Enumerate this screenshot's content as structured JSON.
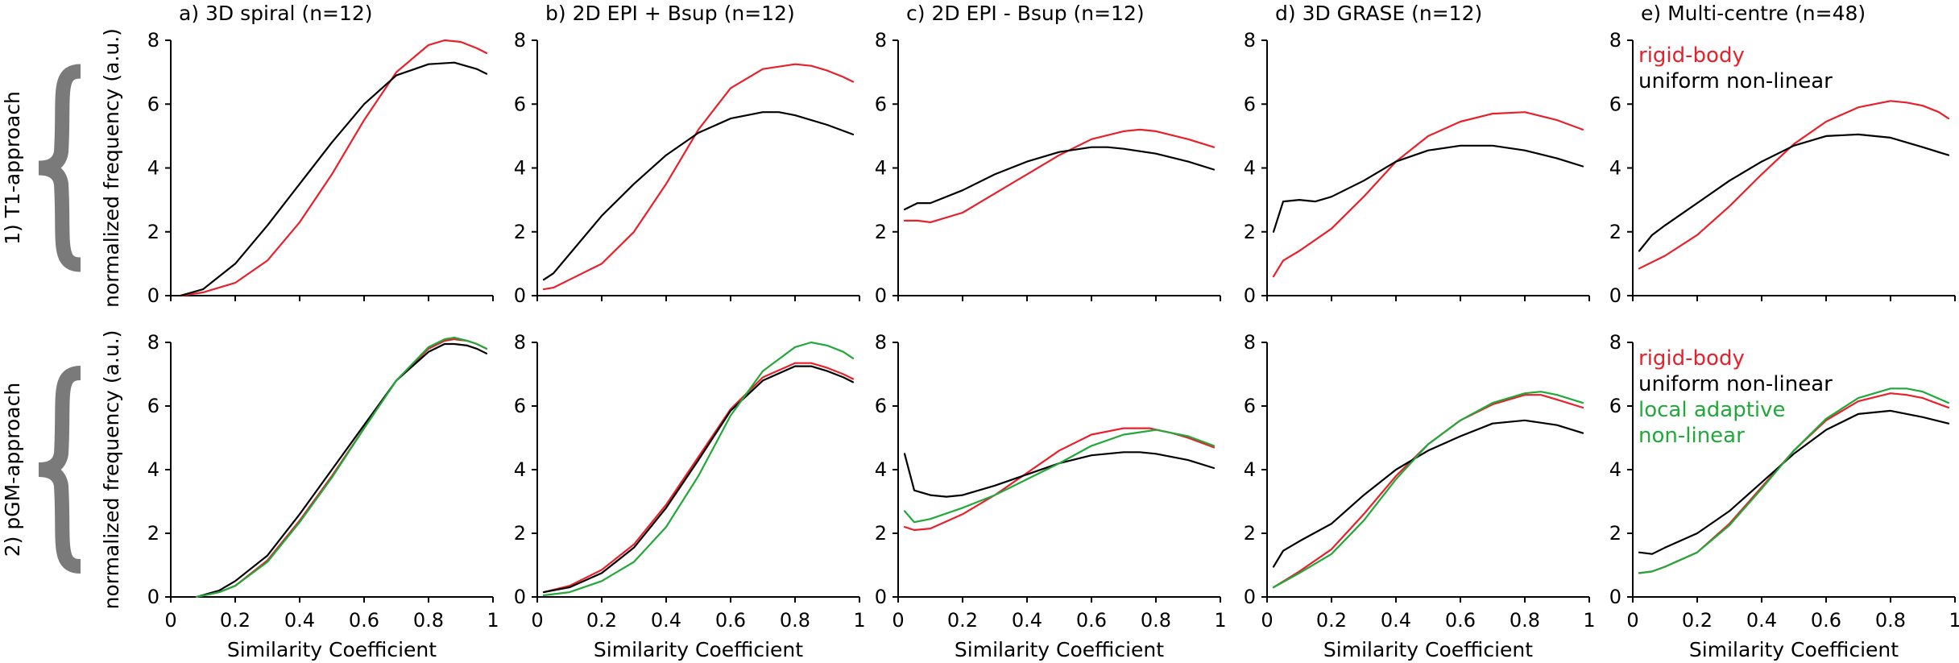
{
  "colors": {
    "rigid": "#e8202a",
    "uniform": "#000000",
    "local": "#22a83a",
    "brace": "#7a7a7a"
  },
  "row_labels": [
    "1) T1-approach",
    "2) pGM-approach"
  ],
  "legend_top": [
    "rigid-body",
    "uniform non-linear"
  ],
  "legend_bottom": [
    "rigid-body",
    "uniform non-linear",
    "local adaptive",
    "non-linear"
  ],
  "chart_data": [
    {
      "type": "line",
      "title": "a) 3D spiral (n=12)",
      "xlabel": "",
      "ylabel": "normalized frequency (a.u.)",
      "xlim": [
        0,
        1
      ],
      "ylim": [
        0,
        8
      ],
      "x_ticks": [
        "0",
        "0.2",
        "0.4",
        "0.6",
        "0.8",
        "1"
      ],
      "y_ticks": [
        "0",
        "2",
        "4",
        "6",
        "8"
      ],
      "series": [
        {
          "name": "rigid-body",
          "color": "rigid",
          "x": [
            0.03,
            0.1,
            0.2,
            0.3,
            0.4,
            0.5,
            0.6,
            0.7,
            0.8,
            0.85,
            0.9,
            0.95,
            0.98
          ],
          "y": [
            0,
            0.1,
            0.4,
            1.1,
            2.3,
            3.8,
            5.5,
            7.0,
            7.85,
            8.0,
            7.95,
            7.75,
            7.6
          ]
        },
        {
          "name": "uniform non-linear",
          "color": "uniform",
          "x": [
            0.03,
            0.1,
            0.2,
            0.3,
            0.4,
            0.5,
            0.6,
            0.7,
            0.8,
            0.88,
            0.95,
            0.98
          ],
          "y": [
            0,
            0.2,
            1.0,
            2.2,
            3.5,
            4.8,
            6.0,
            6.9,
            7.25,
            7.3,
            7.1,
            6.95
          ]
        }
      ]
    },
    {
      "type": "line",
      "title": "b) 2D EPI + Bsup (n=12)",
      "xlabel": "",
      "ylabel": "",
      "xlim": [
        0,
        1
      ],
      "ylim": [
        0,
        8
      ],
      "x_ticks": [
        "0",
        "0.2",
        "0.4",
        "0.6",
        "0.8",
        "1"
      ],
      "y_ticks": [
        "0",
        "2",
        "4",
        "6",
        "8"
      ],
      "series": [
        {
          "name": "rigid-body",
          "color": "rigid",
          "x": [
            0.02,
            0.05,
            0.1,
            0.2,
            0.3,
            0.4,
            0.5,
            0.6,
            0.7,
            0.8,
            0.85,
            0.9,
            0.95,
            0.98
          ],
          "y": [
            0.2,
            0.25,
            0.5,
            1.0,
            2.0,
            3.5,
            5.2,
            6.5,
            7.1,
            7.25,
            7.2,
            7.05,
            6.85,
            6.7
          ]
        },
        {
          "name": "uniform non-linear",
          "color": "uniform",
          "x": [
            0.02,
            0.05,
            0.1,
            0.2,
            0.3,
            0.4,
            0.5,
            0.6,
            0.7,
            0.75,
            0.8,
            0.9,
            0.98
          ],
          "y": [
            0.5,
            0.7,
            1.3,
            2.5,
            3.5,
            4.4,
            5.1,
            5.55,
            5.75,
            5.75,
            5.65,
            5.35,
            5.05
          ]
        }
      ]
    },
    {
      "type": "line",
      "title": "c) 2D EPI - Bsup (n=12)",
      "xlabel": "",
      "ylabel": "",
      "xlim": [
        0,
        1
      ],
      "ylim": [
        0,
        8
      ],
      "x_ticks": [
        "0",
        "0.2",
        "0.4",
        "0.6",
        "0.8",
        "1"
      ],
      "y_ticks": [
        "0",
        "2",
        "4",
        "6",
        "8"
      ],
      "series": [
        {
          "name": "rigid-body",
          "color": "rigid",
          "x": [
            0.02,
            0.06,
            0.1,
            0.2,
            0.3,
            0.4,
            0.5,
            0.6,
            0.7,
            0.75,
            0.8,
            0.9,
            0.98
          ],
          "y": [
            2.35,
            2.35,
            2.3,
            2.6,
            3.2,
            3.8,
            4.4,
            4.9,
            5.15,
            5.2,
            5.15,
            4.9,
            4.65
          ]
        },
        {
          "name": "uniform non-linear",
          "color": "uniform",
          "x": [
            0.02,
            0.06,
            0.1,
            0.2,
            0.3,
            0.4,
            0.5,
            0.6,
            0.65,
            0.7,
            0.8,
            0.9,
            0.98
          ],
          "y": [
            2.7,
            2.9,
            2.9,
            3.3,
            3.8,
            4.2,
            4.5,
            4.65,
            4.65,
            4.6,
            4.45,
            4.2,
            3.95
          ]
        }
      ]
    },
    {
      "type": "line",
      "title": "d) 3D GRASE (n=12)",
      "xlabel": "",
      "ylabel": "",
      "xlim": [
        0,
        1
      ],
      "ylim": [
        0,
        8
      ],
      "x_ticks": [
        "0",
        "0.2",
        "0.4",
        "0.6",
        "0.8",
        "1"
      ],
      "y_ticks": [
        "0",
        "2",
        "4",
        "6",
        "8"
      ],
      "series": [
        {
          "name": "rigid-body",
          "color": "rigid",
          "x": [
            0.02,
            0.05,
            0.1,
            0.2,
            0.3,
            0.4,
            0.5,
            0.6,
            0.7,
            0.8,
            0.9,
            0.98
          ],
          "y": [
            0.6,
            1.1,
            1.4,
            2.1,
            3.1,
            4.2,
            5.0,
            5.45,
            5.7,
            5.75,
            5.5,
            5.2
          ]
        },
        {
          "name": "uniform non-linear",
          "color": "uniform",
          "x": [
            0.02,
            0.05,
            0.1,
            0.15,
            0.2,
            0.3,
            0.4,
            0.5,
            0.6,
            0.65,
            0.7,
            0.8,
            0.9,
            0.98
          ],
          "y": [
            2.0,
            2.95,
            3.0,
            2.95,
            3.1,
            3.6,
            4.2,
            4.55,
            4.7,
            4.7,
            4.7,
            4.55,
            4.3,
            4.05
          ]
        }
      ]
    },
    {
      "type": "line",
      "title": "e) Multi-centre (n=48)",
      "xlabel": "",
      "ylabel": "",
      "xlim": [
        0,
        1
      ],
      "ylim": [
        0,
        8
      ],
      "x_ticks": [
        "0",
        "0.2",
        "0.4",
        "0.6",
        "0.8",
        "1"
      ],
      "y_ticks": [
        "0",
        "2",
        "4",
        "6",
        "8"
      ],
      "series": [
        {
          "name": "rigid-body",
          "color": "rigid",
          "x": [
            0.02,
            0.06,
            0.1,
            0.2,
            0.3,
            0.4,
            0.5,
            0.6,
            0.7,
            0.8,
            0.85,
            0.9,
            0.95,
            0.98
          ],
          "y": [
            0.85,
            1.05,
            1.25,
            1.9,
            2.8,
            3.8,
            4.75,
            5.45,
            5.9,
            6.1,
            6.05,
            5.95,
            5.75,
            5.55
          ]
        },
        {
          "name": "uniform non-linear",
          "color": "uniform",
          "x": [
            0.02,
            0.06,
            0.1,
            0.2,
            0.3,
            0.4,
            0.5,
            0.6,
            0.7,
            0.8,
            0.9,
            0.98
          ],
          "y": [
            1.4,
            1.9,
            2.2,
            2.9,
            3.6,
            4.2,
            4.7,
            5.0,
            5.05,
            4.95,
            4.65,
            4.4
          ]
        }
      ]
    },
    {
      "type": "line",
      "title": "",
      "xlabel": "Similarity Coefficient",
      "ylabel": "normalized frequency (a.u.)",
      "xlim": [
        0,
        1
      ],
      "ylim": [
        0,
        8
      ],
      "x_ticks": [
        "0",
        "0.2",
        "0.4",
        "0.6",
        "0.8",
        "1"
      ],
      "y_ticks": [
        "0",
        "2",
        "4",
        "6",
        "8"
      ],
      "series": [
        {
          "name": "rigid-body",
          "color": "rigid",
          "x": [
            0.08,
            0.15,
            0.2,
            0.3,
            0.4,
            0.5,
            0.6,
            0.7,
            0.8,
            0.85,
            0.88,
            0.92,
            0.95,
            0.98
          ],
          "y": [
            0,
            0.15,
            0.35,
            1.15,
            2.4,
            3.8,
            5.3,
            6.8,
            7.8,
            8.05,
            8.1,
            8.05,
            7.95,
            7.8
          ]
        },
        {
          "name": "uniform non-linear",
          "color": "uniform",
          "x": [
            0.08,
            0.15,
            0.2,
            0.3,
            0.4,
            0.5,
            0.6,
            0.7,
            0.8,
            0.85,
            0.88,
            0.92,
            0.95,
            0.98
          ],
          "y": [
            0,
            0.2,
            0.5,
            1.3,
            2.6,
            4.0,
            5.4,
            6.8,
            7.7,
            7.95,
            7.95,
            7.9,
            7.8,
            7.65
          ]
        },
        {
          "name": "local adaptive non-linear",
          "color": "local",
          "x": [
            0.08,
            0.15,
            0.2,
            0.3,
            0.4,
            0.5,
            0.6,
            0.7,
            0.8,
            0.85,
            0.88,
            0.92,
            0.95,
            0.98
          ],
          "y": [
            0,
            0.15,
            0.35,
            1.1,
            2.35,
            3.75,
            5.3,
            6.8,
            7.85,
            8.1,
            8.15,
            8.05,
            7.95,
            7.8
          ]
        }
      ]
    },
    {
      "type": "line",
      "title": "",
      "xlabel": "Similarity Coefficient",
      "ylabel": "",
      "xlim": [
        0,
        1
      ],
      "ylim": [
        0,
        8
      ],
      "x_ticks": [
        "0",
        "0.2",
        "0.4",
        "0.6",
        "0.8",
        "1"
      ],
      "y_ticks": [
        "0",
        "2",
        "4",
        "6",
        "8"
      ],
      "series": [
        {
          "name": "rigid-body",
          "color": "rigid",
          "x": [
            0.02,
            0.1,
            0.2,
            0.3,
            0.4,
            0.5,
            0.6,
            0.7,
            0.8,
            0.85,
            0.9,
            0.95,
            0.98
          ],
          "y": [
            0.15,
            0.35,
            0.85,
            1.65,
            2.9,
            4.4,
            5.9,
            6.9,
            7.35,
            7.35,
            7.2,
            7.0,
            6.85
          ]
        },
        {
          "name": "uniform non-linear",
          "color": "uniform",
          "x": [
            0.02,
            0.1,
            0.2,
            0.3,
            0.4,
            0.5,
            0.6,
            0.7,
            0.8,
            0.85,
            0.9,
            0.95,
            0.98
          ],
          "y": [
            0.15,
            0.3,
            0.75,
            1.55,
            2.8,
            4.3,
            5.85,
            6.8,
            7.25,
            7.25,
            7.1,
            6.9,
            6.75
          ]
        },
        {
          "name": "local adaptive non-linear",
          "color": "local",
          "x": [
            0.02,
            0.1,
            0.2,
            0.3,
            0.4,
            0.5,
            0.6,
            0.7,
            0.8,
            0.85,
            0.9,
            0.95,
            0.98
          ],
          "y": [
            0.05,
            0.15,
            0.5,
            1.1,
            2.2,
            3.8,
            5.7,
            7.1,
            7.85,
            8.0,
            7.9,
            7.7,
            7.5
          ]
        }
      ]
    },
    {
      "type": "line",
      "title": "",
      "xlabel": "Similarity Coefficient",
      "ylabel": "",
      "xlim": [
        0,
        1
      ],
      "ylim": [
        0,
        8
      ],
      "x_ticks": [
        "0",
        "0.2",
        "0.4",
        "0.6",
        "0.8",
        "1"
      ],
      "y_ticks": [
        "0",
        "2",
        "4",
        "6",
        "8"
      ],
      "series": [
        {
          "name": "rigid-body",
          "color": "rigid",
          "x": [
            0.02,
            0.05,
            0.1,
            0.2,
            0.3,
            0.4,
            0.5,
            0.6,
            0.7,
            0.78,
            0.85,
            0.9,
            0.98
          ],
          "y": [
            2.2,
            2.1,
            2.15,
            2.6,
            3.2,
            3.9,
            4.6,
            5.1,
            5.3,
            5.3,
            5.15,
            5.0,
            4.7
          ]
        },
        {
          "name": "uniform non-linear",
          "color": "uniform",
          "x": [
            0.02,
            0.05,
            0.1,
            0.15,
            0.2,
            0.3,
            0.4,
            0.5,
            0.6,
            0.7,
            0.75,
            0.8,
            0.9,
            0.98
          ],
          "y": [
            4.5,
            3.35,
            3.2,
            3.15,
            3.2,
            3.5,
            3.85,
            4.2,
            4.45,
            4.55,
            4.55,
            4.5,
            4.3,
            4.05
          ]
        },
        {
          "name": "local adaptive non-linear",
          "color": "local",
          "x": [
            0.02,
            0.05,
            0.1,
            0.2,
            0.3,
            0.4,
            0.5,
            0.6,
            0.7,
            0.8,
            0.9,
            0.98
          ],
          "y": [
            2.7,
            2.35,
            2.45,
            2.8,
            3.2,
            3.7,
            4.2,
            4.75,
            5.1,
            5.25,
            5.05,
            4.75
          ]
        }
      ]
    },
    {
      "type": "line",
      "title": "",
      "xlabel": "Similarity Coefficient",
      "ylabel": "",
      "xlim": [
        0,
        1
      ],
      "ylim": [
        0,
        8
      ],
      "x_ticks": [
        "0",
        "0.2",
        "0.4",
        "0.6",
        "0.8",
        "1"
      ],
      "y_ticks": [
        "0",
        "2",
        "4",
        "6",
        "8"
      ],
      "series": [
        {
          "name": "rigid-body",
          "color": "rigid",
          "x": [
            0.02,
            0.1,
            0.2,
            0.3,
            0.4,
            0.5,
            0.6,
            0.7,
            0.8,
            0.85,
            0.9,
            0.98
          ],
          "y": [
            0.3,
            0.8,
            1.5,
            2.6,
            3.8,
            4.8,
            5.55,
            6.05,
            6.35,
            6.35,
            6.2,
            5.95
          ]
        },
        {
          "name": "uniform non-linear",
          "color": "uniform",
          "x": [
            0.02,
            0.05,
            0.1,
            0.2,
            0.3,
            0.4,
            0.5,
            0.6,
            0.7,
            0.8,
            0.9,
            0.98
          ],
          "y": [
            0.95,
            1.45,
            1.75,
            2.3,
            3.2,
            4.0,
            4.6,
            5.05,
            5.45,
            5.55,
            5.4,
            5.15
          ]
        },
        {
          "name": "local adaptive non-linear",
          "color": "local",
          "x": [
            0.02,
            0.1,
            0.2,
            0.3,
            0.4,
            0.5,
            0.6,
            0.7,
            0.8,
            0.85,
            0.9,
            0.98
          ],
          "y": [
            0.3,
            0.75,
            1.35,
            2.4,
            3.7,
            4.8,
            5.55,
            6.1,
            6.4,
            6.45,
            6.35,
            6.1
          ]
        }
      ]
    },
    {
      "type": "line",
      "title": "",
      "xlabel": "Similarity Coefficient",
      "ylabel": "",
      "xlim": [
        0,
        1
      ],
      "ylim": [
        0,
        8
      ],
      "x_ticks": [
        "0",
        "0.2",
        "0.4",
        "0.6",
        "0.8",
        "1"
      ],
      "y_ticks": [
        "0",
        "2",
        "4",
        "6",
        "8"
      ],
      "series": [
        {
          "name": "rigid-body",
          "color": "rigid",
          "x": [
            0.02,
            0.06,
            0.1,
            0.2,
            0.3,
            0.4,
            0.5,
            0.6,
            0.7,
            0.8,
            0.85,
            0.9,
            0.98
          ],
          "y": [
            0.75,
            0.8,
            0.95,
            1.4,
            2.3,
            3.45,
            4.6,
            5.55,
            6.15,
            6.4,
            6.35,
            6.25,
            5.95
          ]
        },
        {
          "name": "uniform non-linear",
          "color": "uniform",
          "x": [
            0.02,
            0.06,
            0.1,
            0.2,
            0.3,
            0.4,
            0.5,
            0.6,
            0.7,
            0.8,
            0.9,
            0.98
          ],
          "y": [
            1.4,
            1.35,
            1.55,
            2.0,
            2.7,
            3.6,
            4.5,
            5.25,
            5.75,
            5.85,
            5.65,
            5.45
          ]
        },
        {
          "name": "local adaptive non-linear",
          "color": "local",
          "x": [
            0.02,
            0.06,
            0.1,
            0.2,
            0.3,
            0.4,
            0.5,
            0.6,
            0.7,
            0.8,
            0.85,
            0.9,
            0.98
          ],
          "y": [
            0.75,
            0.8,
            0.95,
            1.4,
            2.25,
            3.4,
            4.6,
            5.6,
            6.25,
            6.55,
            6.55,
            6.45,
            6.1
          ]
        }
      ]
    }
  ]
}
